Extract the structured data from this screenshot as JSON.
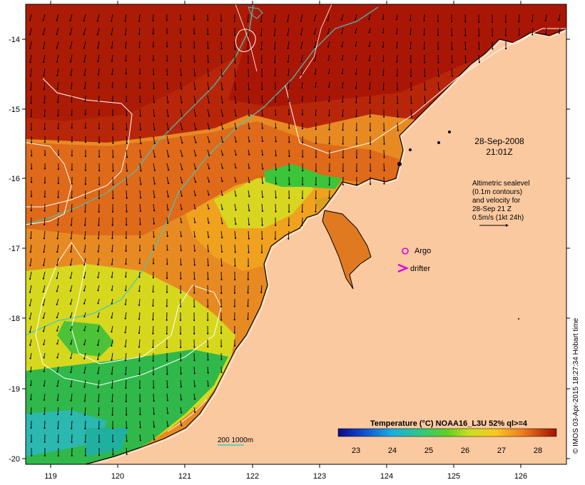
{
  "map": {
    "lon_ticks": [
      "119",
      "120",
      "121",
      "122",
      "123",
      "124",
      "125",
      "126"
    ],
    "lat_ticks": [
      "-14",
      "-15",
      "-16",
      "-17",
      "-18",
      "-19",
      "-20"
    ],
    "date_line1": "28-Sep-2008",
    "date_line2": "21:01Z",
    "sealevel_note": [
      "Altimetric sealevel",
      "(0.1m contours)",
      "and velocity for",
      "28-Sep 21 Z",
      "0.5m/s (1kt 24h)"
    ],
    "argo_label": "Argo",
    "drifter_label": "drifter",
    "depth_legend": "200  1000m",
    "colorbar_title": "Temperature (°C) NOAA16_L3U 52% ql>=4",
    "colorbar_ticks": [
      "23",
      "24",
      "25",
      "26",
      "27",
      "28"
    ],
    "credit": "© IMOS 03-Apr-2015 18:27:34 Hobart time",
    "colors": {
      "land": "#fbc9a0",
      "sst_hot": "#b01a00",
      "sst_warm": "#e0701a",
      "sst_mid": "#f3b21e",
      "sst_yellow": "#d8e21a",
      "sst_green": "#2dbb3a",
      "sst_cyan": "#29b8b0",
      "bathy_line": "#40c8c0",
      "argo": "#e000e0"
    }
  }
}
